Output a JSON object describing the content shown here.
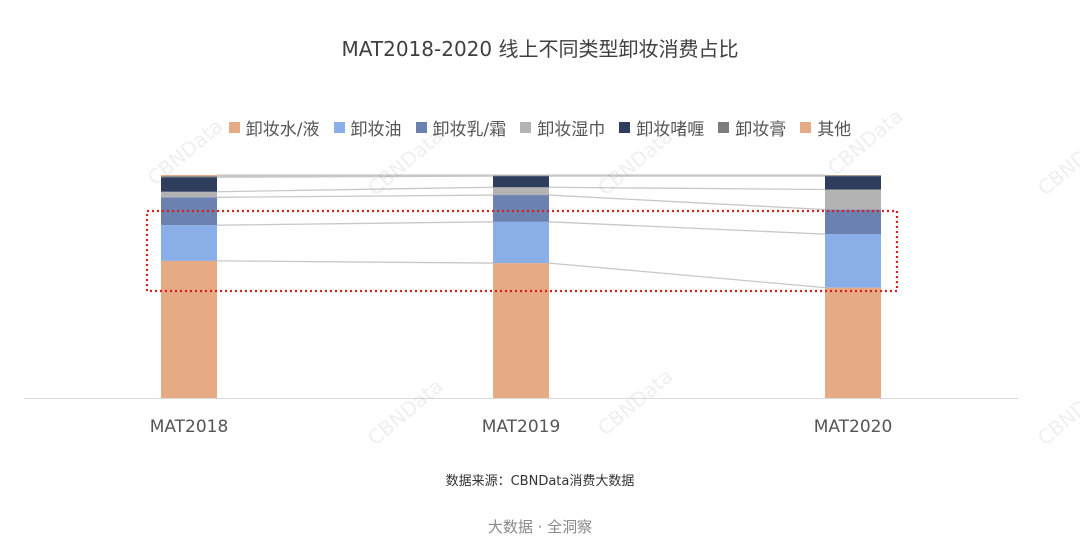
{
  "chart_data": {
    "type": "bar",
    "stacked": true,
    "title": "MAT2018-2020 线上不同类型卸妆消费占比",
    "categories": [
      "MAT2018",
      "MAT2019",
      "MAT2020"
    ],
    "series": [
      {
        "name": "卸妆水/液",
        "color": "#e6ab85",
        "values": [
          61.5,
          60.5,
          49.5
        ]
      },
      {
        "name": "卸妆油",
        "color": "#8aaee8",
        "values": [
          16,
          18.5,
          24
        ]
      },
      {
        "name": "卸妆乳/霜",
        "color": "#6b82b0",
        "values": [
          12.5,
          12,
          11
        ]
      },
      {
        "name": "卸妆湿巾",
        "color": "#b3b3b3",
        "values": [
          2.5,
          3.5,
          9
        ]
      },
      {
        "name": "卸妆啫喱",
        "color": "#2f3d5c",
        "values": [
          6.5,
          5,
          6
        ]
      },
      {
        "name": "卸妆膏",
        "color": "#7d7d7d",
        "values": [
          0.5,
          0.3,
          0.3
        ]
      },
      {
        "name": "其他",
        "color": "#e6ab85",
        "values": [
          0.5,
          0.2,
          0.2
        ]
      }
    ],
    "ylim": [
      0,
      100
    ],
    "grid": false,
    "legend_position": "top",
    "highlight": {
      "style": "dotted red box",
      "series": [
        "卸妆油",
        "卸妆乳/霜"
      ]
    }
  },
  "source": "数据来源：CBNData消费大数据",
  "footer": "大数据 · 全洞察",
  "watermark": "CBNData"
}
